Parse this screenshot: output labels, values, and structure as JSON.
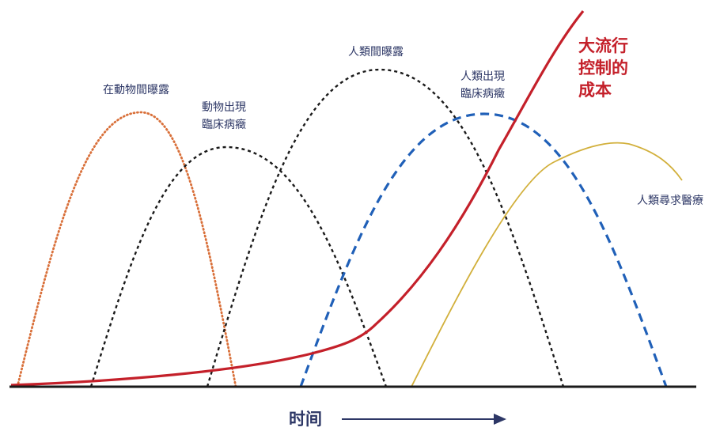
{
  "labels": {
    "animal_exposure": "在動物間曝露",
    "animal_clinical_line1": "動物出現",
    "animal_clinical_line2": "臨床病癥",
    "human_exposure": "人類間曝露",
    "human_clinical_line1": "人類出現",
    "human_clinical_line2": "臨床病癥",
    "human_seek_care": "人類尋求醫療",
    "cost_line1": "大流行",
    "cost_line2": "控制的",
    "cost_line3": "成本",
    "time_axis": "时间"
  },
  "colors": {
    "animal_exposure": "#d9703a",
    "animal_clinical": "#1a1a1a",
    "human_exposure": "#1a1a1a",
    "human_clinical": "#2060b8",
    "human_seek_care": "#d2b03c",
    "cost": "#c4202a",
    "axis": "#1a1a1a",
    "text": "#2d3766"
  },
  "line_styles": {
    "animal_exposure": "dotted",
    "animal_clinical": "dotted",
    "human_exposure": "dotted",
    "human_clinical": "dashed",
    "human_seek_care": "solid",
    "cost": "solid"
  }
}
